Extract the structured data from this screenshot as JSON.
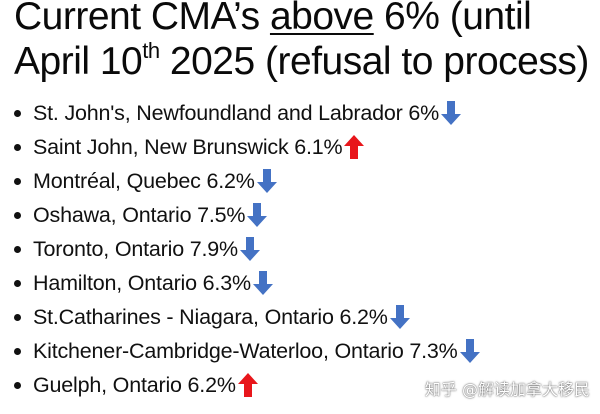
{
  "title": {
    "prefix": "Current CMA’s ",
    "emphasis": "above",
    "suffix": " 6% (until",
    "line2_start": "April 10",
    "line2_sup": "th",
    "line2_end": " 2025 (refusal to process)"
  },
  "colors": {
    "down_arrow": "#4472C4",
    "up_arrow": "#E8161B"
  },
  "items": [
    {
      "label": "St. John's, Newfoundland and Labrador 6%",
      "trend": "down",
      "trend_icon": "arrow-down-icon"
    },
    {
      "label": "Saint John, New Brunswick 6.1%",
      "trend": "up",
      "trend_icon": "arrow-up-icon"
    },
    {
      "label": "Montréal, Quebec 6.2%",
      "trend": "down",
      "trend_icon": "arrow-down-icon"
    },
    {
      "label": "Oshawa, Ontario 7.5%",
      "trend": "down",
      "trend_icon": "arrow-down-icon"
    },
    {
      "label": "Toronto, Ontario 7.9%",
      "trend": "down",
      "trend_icon": "arrow-down-icon"
    },
    {
      "label": "Hamilton, Ontario 6.3%",
      "trend": "down",
      "trend_icon": "arrow-down-icon"
    },
    {
      "label": "St.Catharines - Niagara, Ontario 6.2%",
      "trend": "down",
      "trend_icon": "arrow-down-icon"
    },
    {
      "label": "Kitchener-Cambridge-Waterloo, Ontario 7.3%",
      "trend": "down",
      "trend_icon": "arrow-down-icon"
    },
    {
      "label": "Guelph, Ontario 6.2%",
      "trend": "up",
      "trend_icon": "arrow-up-icon"
    }
  ],
  "watermark": "知乎 @解读加拿大移民"
}
